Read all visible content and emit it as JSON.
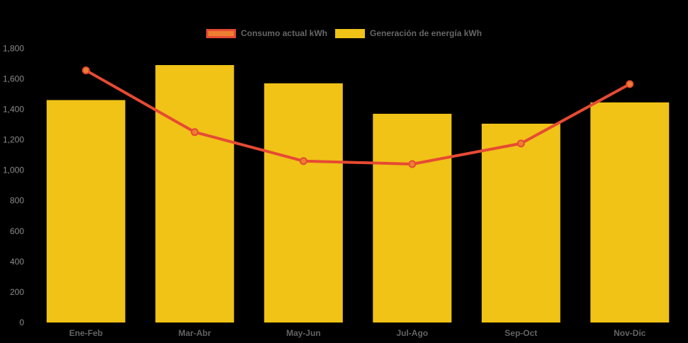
{
  "chart_data": {
    "type": "combo",
    "title": "",
    "xlabel": "",
    "ylabel": "",
    "categories": [
      "Ene-Feb",
      "Mar-Abr",
      "May-Jun",
      "Jul-Ago",
      "Sep-Oct",
      "Nov-Dic"
    ],
    "series": [
      {
        "name": "Consumo actual kWh",
        "type": "line",
        "color": "#e64a33",
        "marker_fill": "#ee7f31",
        "values": [
          1655,
          1250,
          1060,
          1040,
          1175,
          1565
        ]
      },
      {
        "name": "Generación de energía kWh",
        "type": "bar",
        "color": "#f0c316",
        "values": [
          1460,
          1690,
          1570,
          1370,
          1305,
          1445
        ]
      }
    ],
    "ylim": [
      0,
      1800
    ],
    "yticks": {
      "values": [
        0,
        200,
        400,
        600,
        800,
        1000,
        1200,
        1400,
        1600,
        1800
      ],
      "labels": [
        "0",
        "200",
        "400",
        "600",
        "800",
        "1,000",
        "1,200",
        "1,400",
        "1,600",
        "1,800"
      ]
    },
    "legend_position": "top",
    "grid": false,
    "background": "#000000",
    "y_axis_label_color": "#8a8a8a",
    "x_axis_label_color": "#636363"
  }
}
